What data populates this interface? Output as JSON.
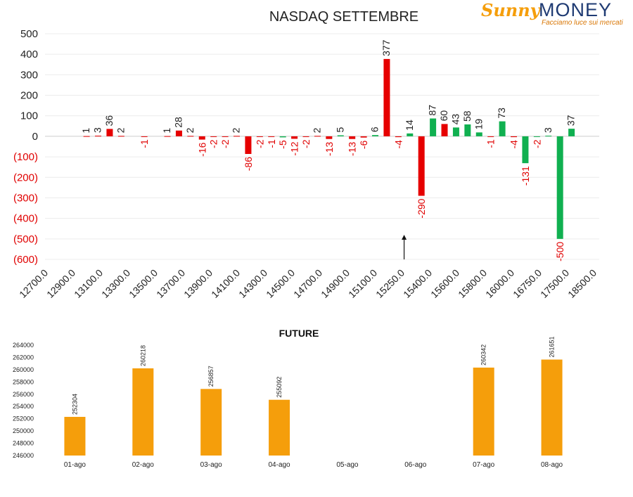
{
  "logo": {
    "brand_left": "Sunny",
    "brand_right": "MONEY",
    "tagline": "Facciamo luce sui mercati",
    "colors": {
      "sunny": "#f59e0b",
      "money": "#1f3b73"
    }
  },
  "chart_data": [
    {
      "type": "bar",
      "title": "NASDAQ SETTEMBRE",
      "xlabel": "",
      "ylabel": "",
      "ylim": [
        -600,
        500
      ],
      "yticks": [
        "500",
        "400",
        "300",
        "200",
        "100",
        "0",
        "(100)",
        "(200)",
        "(300)",
        "(400)",
        "(500)",
        "(600)"
      ],
      "negative_tick_color": "#e00000",
      "x_tick_labels": [
        "12700.0",
        "12900.0",
        "13100.0",
        "13300.0",
        "13500.0",
        "13700.0",
        "13900.0",
        "14100.0",
        "14300.0",
        "14500.0",
        "14700.0",
        "14900.0",
        "15100.0",
        "15250.0",
        "15400.0",
        "15600.0",
        "15800.0",
        "16000.0",
        "16750.0",
        "17500.0",
        "18500.0"
      ],
      "colors": {
        "red": "#e60000",
        "green": "#10b050"
      },
      "bars": [
        {
          "pos": 3.6,
          "value": 1,
          "color": "red"
        },
        {
          "pos": 4.6,
          "value": 3,
          "color": "red"
        },
        {
          "pos": 5.6,
          "value": 36,
          "color": "red"
        },
        {
          "pos": 6.6,
          "value": 2,
          "color": "red"
        },
        {
          "pos": 8.6,
          "value": -1,
          "color": "red"
        },
        {
          "pos": 10.6,
          "value": 1,
          "color": "red"
        },
        {
          "pos": 11.6,
          "value": 28,
          "color": "red"
        },
        {
          "pos": 12.6,
          "value": 2,
          "color": "red"
        },
        {
          "pos": 13.6,
          "value": -16,
          "color": "red"
        },
        {
          "pos": 14.6,
          "value": -2,
          "color": "red"
        },
        {
          "pos": 15.6,
          "value": -2,
          "color": "red"
        },
        {
          "pos": 16.6,
          "value": 2,
          "color": "red"
        },
        {
          "pos": 17.6,
          "value": -86,
          "color": "red"
        },
        {
          "pos": 18.6,
          "value": -2,
          "color": "red"
        },
        {
          "pos": 19.6,
          "value": -1,
          "color": "red"
        },
        {
          "pos": 20.6,
          "value": -5,
          "color": "green"
        },
        {
          "pos": 21.6,
          "value": -12,
          "color": "red"
        },
        {
          "pos": 22.6,
          "value": -2,
          "color": "red"
        },
        {
          "pos": 23.6,
          "value": 2,
          "color": "red"
        },
        {
          "pos": 24.6,
          "value": -13,
          "color": "red"
        },
        {
          "pos": 25.6,
          "value": 5,
          "color": "green"
        },
        {
          "pos": 26.6,
          "value": -13,
          "color": "red"
        },
        {
          "pos": 27.6,
          "value": -6,
          "color": "red"
        },
        {
          "pos": 28.6,
          "value": 6,
          "color": "green"
        },
        {
          "pos": 29.6,
          "value": 377,
          "color": "red"
        },
        {
          "pos": 30.6,
          "value": -4,
          "color": "red"
        },
        {
          "pos": 31.6,
          "value": 14,
          "color": "green"
        },
        {
          "pos": 32.6,
          "value": -290,
          "color": "red"
        },
        {
          "pos": 33.6,
          "value": 87,
          "color": "green"
        },
        {
          "pos": 34.6,
          "value": 60,
          "color": "red"
        },
        {
          "pos": 35.6,
          "value": 43,
          "color": "green"
        },
        {
          "pos": 36.6,
          "value": 58,
          "color": "green"
        },
        {
          "pos": 37.6,
          "value": 19,
          "color": "green"
        },
        {
          "pos": 38.6,
          "value": -1,
          "color": "red"
        },
        {
          "pos": 39.6,
          "value": 73,
          "color": "green"
        },
        {
          "pos": 40.6,
          "value": -4,
          "color": "red"
        },
        {
          "pos": 41.6,
          "value": -131,
          "color": "green"
        },
        {
          "pos": 42.6,
          "value": -2,
          "color": "green"
        },
        {
          "pos": 43.6,
          "value": 3,
          "color": "green"
        },
        {
          "pos": 44.6,
          "value": -500,
          "color": "green"
        },
        {
          "pos": 45.6,
          "value": 37,
          "color": "green"
        }
      ],
      "annotations": [
        {
          "type": "arrow",
          "pos": 31.1,
          "from": -600,
          "to": -480
        }
      ],
      "grid": true,
      "legend": "none"
    },
    {
      "type": "bar",
      "title": "FUTURE",
      "xlabel": "",
      "ylabel": "",
      "ylim": [
        246000,
        264000
      ],
      "yticks": [
        246000,
        248000,
        250000,
        252000,
        254000,
        256000,
        258000,
        260000,
        262000,
        264000
      ],
      "categories": [
        "01-ago",
        "02-ago",
        "03-ago",
        "04-ago",
        "05-ago",
        "06-ago",
        "07-ago",
        "08-ago"
      ],
      "values": [
        252304,
        260218,
        256857,
        255092,
        null,
        null,
        260342,
        261651
      ],
      "color": "#f59e0b",
      "grid": false,
      "legend": "none"
    }
  ]
}
